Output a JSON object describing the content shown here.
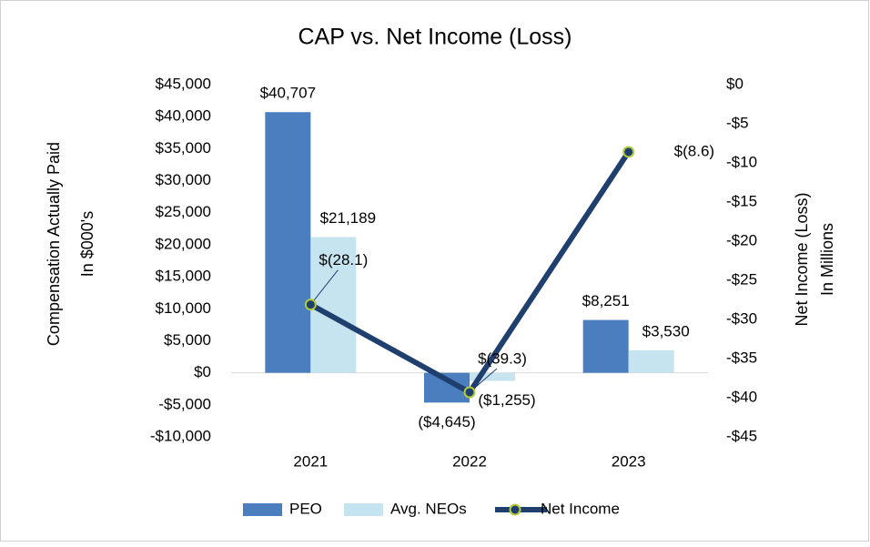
{
  "chart_data": {
    "type": "bar-line",
    "title": "CAP vs. Net Income (Loss)",
    "ylabel": [
      "Compensation Actually Paid",
      "In $000's"
    ],
    "y2label": [
      "Net Income (Loss)",
      "In Millions"
    ],
    "categories": [
      "2021",
      "2022",
      "2023"
    ],
    "series": [
      {
        "name": "PEO",
        "type": "bar",
        "color": "#4a7ebf",
        "values": [
          40707,
          -4645,
          8251
        ],
        "value_labels": [
          "$40,707",
          "($4,645)",
          "$8,251"
        ]
      },
      {
        "name": "Avg. NEOs",
        "type": "bar",
        "color": "#c6e4ef",
        "values": [
          21189,
          -1255,
          3530
        ],
        "value_labels": [
          "$21,189",
          "($1,255)",
          "$3,530"
        ]
      },
      {
        "name": "Net Income",
        "type": "line",
        "axis": "y2",
        "color": "#1f3f6e",
        "marker_edge": "#b4cc3a",
        "values": [
          -28.1,
          -39.3,
          -8.6
        ],
        "value_labels": [
          "$(28.1)",
          "$(39.3)",
          "$(8.6)"
        ]
      }
    ],
    "ylim": [
      -10000,
      45000
    ],
    "yticks": [
      {
        "value": -10000,
        "label": "-$10,000"
      },
      {
        "value": -5000,
        "label": "-$5,000"
      },
      {
        "value": 0,
        "label": "$0"
      },
      {
        "value": 5000,
        "label": "$5,000"
      },
      {
        "value": 10000,
        "label": "$10,000"
      },
      {
        "value": 15000,
        "label": "$15,000"
      },
      {
        "value": 20000,
        "label": "$20,000"
      },
      {
        "value": 25000,
        "label": "$25,000"
      },
      {
        "value": 30000,
        "label": "$30,000"
      },
      {
        "value": 35000,
        "label": "$35,000"
      },
      {
        "value": 40000,
        "label": "$40,000"
      },
      {
        "value": 45000,
        "label": "$45,000"
      }
    ],
    "y2lim": [
      -45,
      0
    ],
    "y2ticks": [
      {
        "value": -45,
        "label": "-$45"
      },
      {
        "value": -40,
        "label": "-$40"
      },
      {
        "value": -35,
        "label": "-$35"
      },
      {
        "value": -30,
        "label": "-$30"
      },
      {
        "value": -25,
        "label": "-$25"
      },
      {
        "value": -20,
        "label": "-$20"
      },
      {
        "value": -15,
        "label": "-$15"
      },
      {
        "value": -10,
        "label": "-$10"
      },
      {
        "value": -5,
        "label": "-$5"
      },
      {
        "value": 0,
        "label": "$0"
      }
    ],
    "legend": "bottom"
  }
}
